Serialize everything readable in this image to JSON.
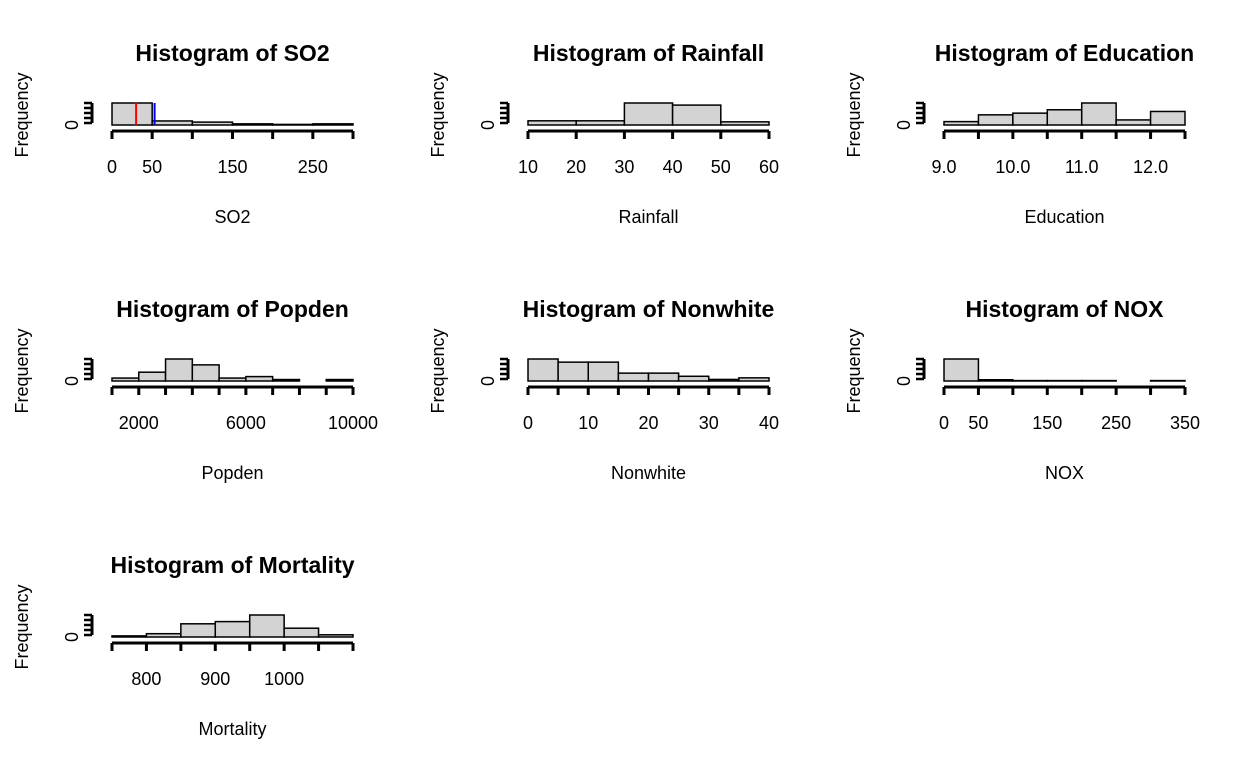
{
  "chart_data": [
    {
      "type": "bar",
      "title": "Histogram of SO2",
      "xlabel": "SO2",
      "ylabel": "Frequency",
      "bin_edges": [
        0,
        50,
        100,
        150,
        200,
        250,
        300
      ],
      "counts": [
        38,
        7,
        5,
        2,
        1,
        2
      ],
      "x_ticks": [
        0,
        50,
        150,
        250
      ],
      "x_tick_labels": [
        "0",
        "50",
        "150",
        "250"
      ],
      "y_tick_labels": [
        "0"
      ],
      "reference_lines": [
        {
          "value": 30,
          "color": "#ff0000"
        },
        {
          "value": 53,
          "color": "#0000ff"
        }
      ]
    },
    {
      "type": "bar",
      "title": "Histogram of Rainfall",
      "xlabel": "Rainfall",
      "ylabel": "Frequency",
      "bin_edges": [
        10,
        20,
        30,
        40,
        50,
        60
      ],
      "counts": [
        4,
        4,
        21,
        19,
        3
      ],
      "x_ticks": [
        10,
        20,
        30,
        40,
        50,
        60
      ],
      "x_tick_labels": [
        "10",
        "20",
        "30",
        "40",
        "50",
        "60"
      ],
      "y_tick_labels": [
        "0"
      ]
    },
    {
      "type": "bar",
      "title": "Histogram of Education",
      "xlabel": "Education",
      "ylabel": "Frequency",
      "bin_edges": [
        9.0,
        9.5,
        10.0,
        10.5,
        11.0,
        11.5,
        12.0,
        12.5
      ],
      "counts": [
        2,
        6,
        7,
        9,
        13,
        3,
        8
      ],
      "x_ticks": [
        9.0,
        10.0,
        11.0,
        12.0
      ],
      "x_tick_labels": [
        "9.0",
        "10.0",
        "11.0",
        "12.0"
      ],
      "y_tick_labels": [
        "0"
      ]
    },
    {
      "type": "bar",
      "title": "Histogram of Popden",
      "xlabel": "Popden",
      "ylabel": "Frequency",
      "bin_edges": [
        1000,
        2000,
        3000,
        4000,
        5000,
        6000,
        7000,
        8000,
        9000,
        10000
      ],
      "counts": [
        2,
        6,
        15,
        11,
        2,
        3,
        1,
        0,
        1
      ],
      "x_ticks": [
        2000,
        6000,
        10000
      ],
      "x_tick_labels": [
        "2000",
        "6000",
        "10000"
      ],
      "y_tick_labels": [
        "0"
      ]
    },
    {
      "type": "bar",
      "title": "Histogram of Nonwhite",
      "xlabel": "Nonwhite",
      "ylabel": "Frequency",
      "bin_edges": [
        0,
        5,
        10,
        15,
        20,
        25,
        30,
        35,
        40
      ],
      "counts": [
        14,
        12,
        12,
        5,
        5,
        3,
        1,
        2
      ],
      "x_ticks": [
        0,
        10,
        20,
        30,
        40
      ],
      "x_tick_labels": [
        "0",
        "10",
        "20",
        "30",
        "40"
      ],
      "y_tick_labels": [
        "0"
      ]
    },
    {
      "type": "bar",
      "title": "Histogram of NOX",
      "xlabel": "NOX",
      "ylabel": "Frequency",
      "bin_edges": [
        0,
        50,
        100,
        150,
        200,
        250,
        300,
        350
      ],
      "counts": [
        53,
        3,
        1,
        1,
        1,
        0,
        1
      ],
      "x_ticks": [
        0,
        50,
        150,
        250,
        350
      ],
      "x_tick_labels": [
        "0",
        "50",
        "150",
        "250",
        "350"
      ],
      "y_tick_labels": [
        "0"
      ]
    },
    {
      "type": "bar",
      "title": "Histogram of Mortality",
      "xlabel": "Mortality",
      "ylabel": "Frequency",
      "bin_edges": [
        750,
        800,
        850,
        900,
        950,
        1000,
        1050,
        1100
      ],
      "counts": [
        1,
        3,
        12,
        14,
        20,
        8,
        2
      ],
      "x_ticks": [
        800,
        900,
        1000
      ],
      "x_tick_labels": [
        "800",
        "900",
        "1000"
      ],
      "y_tick_labels": [
        "0"
      ]
    }
  ]
}
